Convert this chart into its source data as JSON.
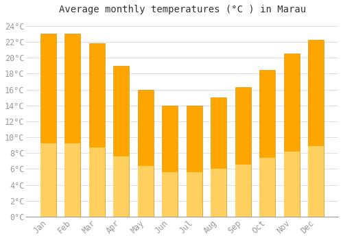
{
  "title": "Average monthly temperatures (°C ) in Marau",
  "months": [
    "Jan",
    "Feb",
    "Mar",
    "Apr",
    "May",
    "Jun",
    "Jul",
    "Aug",
    "Sep",
    "Oct",
    "Nov",
    "Dec"
  ],
  "values": [
    23,
    23,
    21.8,
    19,
    16,
    14,
    14,
    15,
    16.3,
    18.5,
    20.5,
    22.3
  ],
  "bar_color_top": "#FFA500",
  "bar_color_bottom": "#FFD060",
  "bar_edge_color": "#CC8800",
  "background_color": "#FFFFFF",
  "plot_bg_color": "#FFFFFF",
  "grid_color": "#DDDDDD",
  "ylim": [
    0,
    25
  ],
  "yticks": [
    0,
    2,
    4,
    6,
    8,
    10,
    12,
    14,
    16,
    18,
    20,
    22,
    24
  ],
  "title_fontsize": 10,
  "tick_fontsize": 8.5,
  "tick_color": "#999999",
  "title_color": "#333333",
  "bar_width": 0.65
}
